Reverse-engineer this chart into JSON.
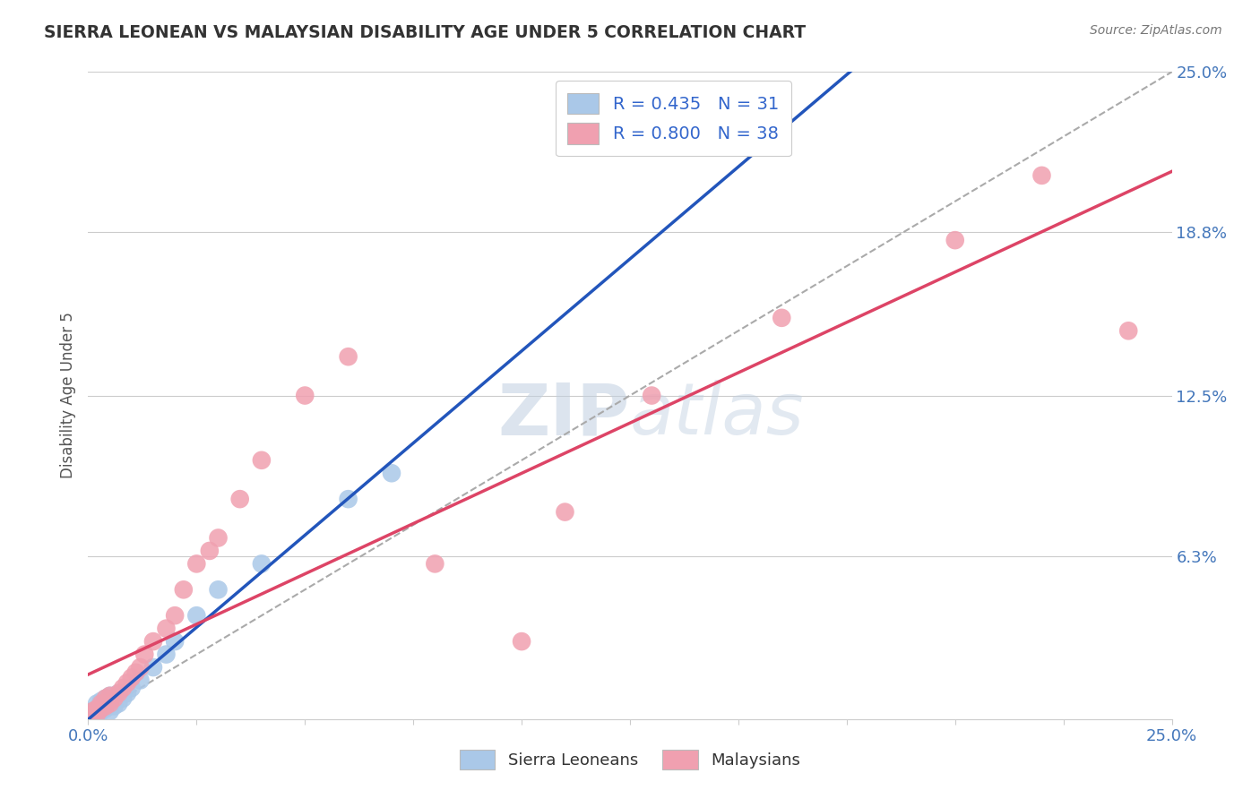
{
  "title": "SIERRA LEONEAN VS MALAYSIAN DISABILITY AGE UNDER 5 CORRELATION CHART",
  "source": "Source: ZipAtlas.com",
  "ylabel": "Disability Age Under 5",
  "ytick_labels": [
    "6.3%",
    "12.5%",
    "18.8%",
    "25.0%"
  ],
  "ytick_values": [
    0.063,
    0.125,
    0.188,
    0.25
  ],
  "legend_entry1": "R = 0.435   N = 31",
  "legend_entry2": "R = 0.800   N = 38",
  "legend_label1": "Sierra Leoneans",
  "legend_label2": "Malaysians",
  "blue_color": "#aac8e8",
  "pink_color": "#f0a0b0",
  "blue_line_color": "#2255bb",
  "pink_line_color": "#dd4466",
  "watermark": "ZIPAtlas",
  "watermark_color": "#c5d8ec",
  "background_color": "#ffffff",
  "sl_x": [
    0.0005,
    0.001,
    0.001,
    0.002,
    0.002,
    0.002,
    0.003,
    0.003,
    0.003,
    0.004,
    0.004,
    0.004,
    0.005,
    0.005,
    0.005,
    0.006,
    0.006,
    0.007,
    0.007,
    0.008,
    0.009,
    0.01,
    0.012,
    0.015,
    0.018,
    0.02,
    0.025,
    0.03,
    0.04,
    0.06,
    0.07
  ],
  "sl_y": [
    0.001,
    0.002,
    0.003,
    0.002,
    0.004,
    0.006,
    0.003,
    0.005,
    0.007,
    0.004,
    0.006,
    0.008,
    0.003,
    0.006,
    0.009,
    0.005,
    0.008,
    0.006,
    0.01,
    0.008,
    0.01,
    0.012,
    0.015,
    0.02,
    0.025,
    0.03,
    0.04,
    0.05,
    0.06,
    0.085,
    0.095
  ],
  "my_x": [
    0.0005,
    0.001,
    0.001,
    0.002,
    0.002,
    0.003,
    0.003,
    0.004,
    0.004,
    0.005,
    0.005,
    0.006,
    0.007,
    0.008,
    0.009,
    0.01,
    0.011,
    0.012,
    0.013,
    0.015,
    0.018,
    0.02,
    0.022,
    0.025,
    0.028,
    0.03,
    0.035,
    0.04,
    0.05,
    0.06,
    0.08,
    0.1,
    0.11,
    0.13,
    0.16,
    0.2,
    0.22,
    0.24
  ],
  "my_y": [
    0.001,
    0.002,
    0.003,
    0.002,
    0.004,
    0.004,
    0.006,
    0.005,
    0.008,
    0.006,
    0.009,
    0.008,
    0.01,
    0.012,
    0.014,
    0.016,
    0.018,
    0.02,
    0.025,
    0.03,
    0.035,
    0.04,
    0.05,
    0.06,
    0.065,
    0.07,
    0.085,
    0.1,
    0.125,
    0.14,
    0.06,
    0.03,
    0.08,
    0.125,
    0.155,
    0.185,
    0.21,
    0.15
  ]
}
